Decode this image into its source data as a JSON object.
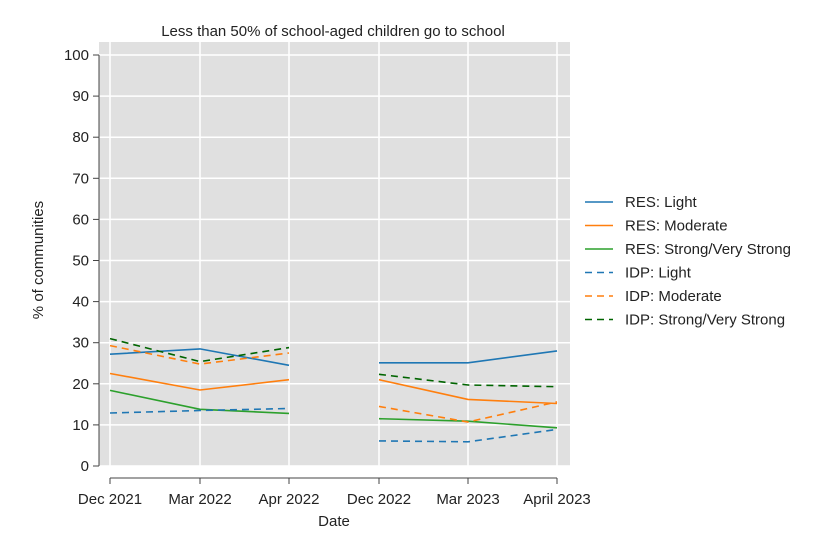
{
  "chart_data": {
    "type": "line",
    "title": "Less than 50% of school-aged children go to school",
    "xlabel": "Date",
    "ylabel": "% of communities",
    "categories": [
      "Dec 2021",
      "Mar 2022",
      "Apr 2022",
      "Dec 2022",
      "Mar 2023",
      "April 2023"
    ],
    "ylim": [
      0,
      100
    ],
    "yticks": [
      0,
      10,
      20,
      30,
      40,
      50,
      60,
      70,
      80,
      90,
      100
    ],
    "grid": true,
    "legend": "right",
    "series": [
      {
        "name": "RES: Light",
        "color": "#1f77b4",
        "dash": "solid",
        "values": [
          27.2,
          28.5,
          24.5,
          25.1,
          25.1,
          28.0
        ]
      },
      {
        "name": "RES: Moderate",
        "color": "#ff7f0e",
        "dash": "solid",
        "values": [
          22.5,
          18.5,
          21.0,
          21.0,
          16.2,
          15.2
        ]
      },
      {
        "name": "RES: Strong/Very Strong",
        "color": "#2ca02c",
        "dash": "solid",
        "values": [
          18.4,
          13.8,
          12.8,
          11.5,
          10.9,
          9.3
        ]
      },
      {
        "name": "IDP: Light",
        "color": "#1f77b4",
        "dash": "dashed",
        "values": [
          12.9,
          13.5,
          14.0,
          6.1,
          5.9,
          8.9
        ]
      },
      {
        "name": "IDP: Moderate",
        "color": "#ff7f0e",
        "dash": "dashed",
        "values": [
          29.3,
          24.8,
          27.5,
          14.5,
          10.7,
          15.6
        ]
      },
      {
        "name": "IDP: Strong/Very Strong",
        "color": "#006400",
        "dash": "dashed",
        "values": [
          31.0,
          25.4,
          28.8,
          22.3,
          19.7,
          19.3
        ]
      }
    ]
  }
}
